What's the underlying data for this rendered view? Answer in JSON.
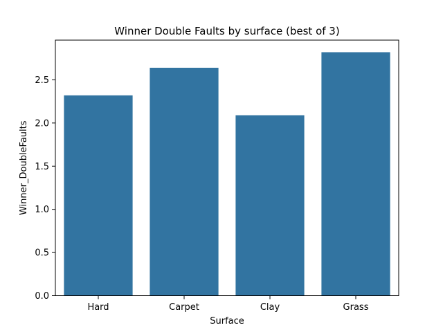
{
  "chart_data": {
    "type": "bar",
    "title": "Winner Double Faults by surface (best of 3)",
    "xlabel": "Surface",
    "ylabel": "Winner_DoubleFaults",
    "categories": [
      "Hard",
      "Carpet",
      "Clay",
      "Grass"
    ],
    "values": [
      2.32,
      2.64,
      2.09,
      2.82
    ],
    "ylim": [
      0,
      2.96
    ],
    "yticks": [
      0.0,
      0.5,
      1.0,
      1.5,
      2.0,
      2.5
    ],
    "ytick_labels": [
      "0.0",
      "0.5",
      "1.0",
      "1.5",
      "2.0",
      "2.5"
    ],
    "grid": false,
    "bar_color": "#3274a1"
  }
}
